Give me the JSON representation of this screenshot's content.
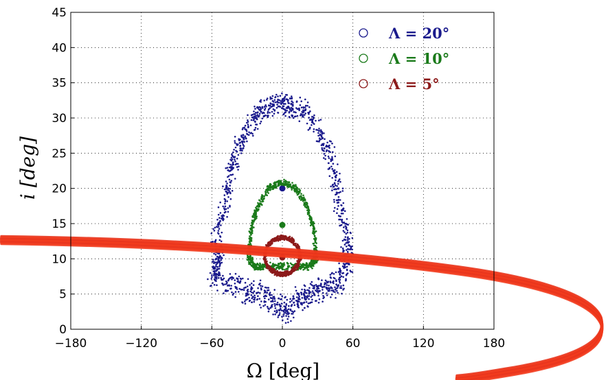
{
  "chart_data": {
    "type": "scatter",
    "title": "",
    "xlabel": "Ω [deg]",
    "ylabel": "i [deg]",
    "xlim": [
      -180,
      180
    ],
    "ylim": [
      0,
      45
    ],
    "xticks": [
      -180,
      -120,
      -60,
      0,
      60,
      120,
      180
    ],
    "yticks": [
      0,
      5,
      10,
      15,
      20,
      25,
      30,
      35,
      40,
      45
    ],
    "xtick_labels": [
      "−180",
      "−120",
      "−60",
      "0",
      "60",
      "120",
      "180"
    ],
    "ytick_labels": [
      "0",
      "5",
      "10",
      "15",
      "20",
      "25",
      "30",
      "35",
      "40",
      "45"
    ],
    "grid": true,
    "legend_position": "top-right",
    "series": [
      {
        "name": "Λ = 20°",
        "color": "#1a1a8c",
        "center": [
          0,
          20
        ],
        "outline": [
          [
            -60,
            12.5
          ],
          [
            -52,
            17
          ],
          [
            -48,
            22
          ],
          [
            -40,
            26
          ],
          [
            -32,
            29
          ],
          [
            -20,
            31.5
          ],
          [
            -8,
            32.5
          ],
          [
            0,
            33
          ],
          [
            8,
            32.5
          ],
          [
            20,
            31.5
          ],
          [
            32,
            29
          ],
          [
            40,
            26
          ],
          [
            48,
            22
          ],
          [
            52,
            17
          ],
          [
            60,
            12.5
          ],
          [
            58,
            9
          ],
          [
            52,
            6
          ],
          [
            40,
            5
          ],
          [
            30,
            4.5
          ],
          [
            20,
            3.5
          ],
          [
            10,
            2.5
          ],
          [
            2,
            1.5
          ],
          [
            -8,
            3
          ],
          [
            -20,
            4
          ],
          [
            -32,
            4.5
          ],
          [
            -45,
            5.5
          ],
          [
            -62,
            6.5
          ],
          [
            -58,
            9
          ]
        ]
      },
      {
        "name": "Λ = 10°",
        "color": "#1a7a1a",
        "center": [
          0,
          14.8
        ],
        "outline": [
          [
            -30,
            10
          ],
          [
            -28,
            14
          ],
          [
            -22,
            17.5
          ],
          [
            -12,
            20.3
          ],
          [
            0,
            21.2
          ],
          [
            12,
            20.3
          ],
          [
            22,
            17.5
          ],
          [
            28,
            14
          ],
          [
            30,
            10
          ],
          [
            25,
            8.7
          ],
          [
            15,
            8.6
          ],
          [
            0,
            8.8
          ],
          [
            -15,
            8.6
          ],
          [
            -25,
            8.7
          ]
        ]
      },
      {
        "name": "Λ = 5°",
        "color": "#8c1a1a",
        "center": [
          0,
          10.2
        ],
        "outline": [
          [
            -16,
            10.2
          ],
          [
            -14,
            11.8
          ],
          [
            -8,
            12.8
          ],
          [
            0,
            13.2
          ],
          [
            8,
            12.8
          ],
          [
            14,
            11.8
          ],
          [
            16,
            10.2
          ],
          [
            13,
            8.8
          ],
          [
            6,
            7.9
          ],
          [
            0,
            7.7
          ],
          [
            -6,
            7.9
          ],
          [
            -13,
            8.8
          ]
        ]
      }
    ]
  }
}
